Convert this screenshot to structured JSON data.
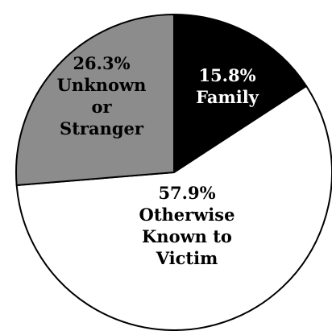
{
  "chart_data": {
    "type": "pie",
    "slices": [
      {
        "id": "family",
        "value": 15.8,
        "percent_label": "15.8%",
        "label_lines": [
          "Family"
        ],
        "color": "#000000",
        "text_color": "#ffffff"
      },
      {
        "id": "otherwise-known",
        "value": 57.9,
        "percent_label": "57.9%",
        "label_lines": [
          "Otherwise",
          "Known to",
          "Victim"
        ],
        "color": "#ffffff",
        "text_color": "#000000"
      },
      {
        "id": "unknown-stranger",
        "value": 26.3,
        "percent_label": "26.3%",
        "label_lines": [
          "Unknown",
          "or",
          "Stranger"
        ],
        "color": "#8c8c8c",
        "text_color": "#000000"
      }
    ],
    "start_angle_deg": 0,
    "direction": "clockwise",
    "edge_color": "#000000"
  }
}
